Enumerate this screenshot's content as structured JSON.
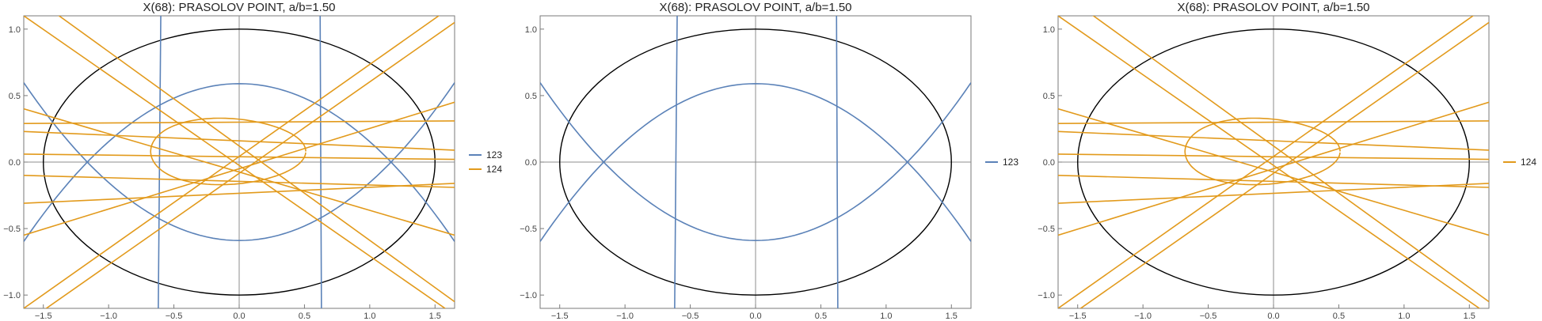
{
  "colors": {
    "s123": "#5b82b8",
    "s124": "#e29a1c",
    "ellipse": "#000000",
    "axes": "#8c8c8c",
    "frame": "#7a7a7a"
  },
  "chart_data": [
    {
      "type": "line",
      "title": "X(68): PRASOLOV POINT, a/b=1.50",
      "xlim": [
        -1.65,
        1.65
      ],
      "ylim": [
        -1.1,
        1.1
      ],
      "xticks": [
        "-1.5",
        "-1.0",
        "-0.5",
        "0.0",
        "0.5",
        "1.0",
        "1.5"
      ],
      "yticks": [
        "-1.0",
        "-0.5",
        "0.0",
        "0.5",
        "1.0"
      ],
      "legend": [
        "123",
        "124"
      ],
      "legend_position": "right",
      "grid": false,
      "series": [
        {
          "name": "123",
          "color": "#5b82b8",
          "show": true
        },
        {
          "name": "124",
          "color": "#e29a1c",
          "show": true
        }
      ]
    },
    {
      "type": "line",
      "title": "X(68): PRASOLOV POINT, a/b=1.50",
      "xlim": [
        -1.65,
        1.65
      ],
      "ylim": [
        -1.1,
        1.1
      ],
      "xticks": [
        "-1.5",
        "-1.0",
        "-0.5",
        "0.0",
        "0.5",
        "1.0",
        "1.5"
      ],
      "yticks": [
        "-1.0",
        "-0.5",
        "0.0",
        "0.5",
        "1.0"
      ],
      "legend": [
        "123"
      ],
      "legend_position": "right",
      "grid": false,
      "series": [
        {
          "name": "123",
          "color": "#5b82b8",
          "show": true
        },
        {
          "name": "124",
          "color": "#e29a1c",
          "show": false
        }
      ]
    },
    {
      "type": "line",
      "title": "X(68): PRASOLOV POINT, a/b=1.50",
      "xlim": [
        -1.65,
        1.65
      ],
      "ylim": [
        -1.1,
        1.1
      ],
      "xticks": [
        "-1.5",
        "-1.0",
        "-0.5",
        "0.0",
        "0.5",
        "1.0",
        "1.5"
      ],
      "yticks": [
        "-1.0",
        "-0.5",
        "0.0",
        "0.5",
        "1.0"
      ],
      "legend": [
        "124"
      ],
      "legend_position": "right",
      "grid": false,
      "series": [
        {
          "name": "123",
          "color": "#5b82b8",
          "show": false
        },
        {
          "name": "124",
          "color": "#e29a1c",
          "show": true
        }
      ]
    }
  ]
}
